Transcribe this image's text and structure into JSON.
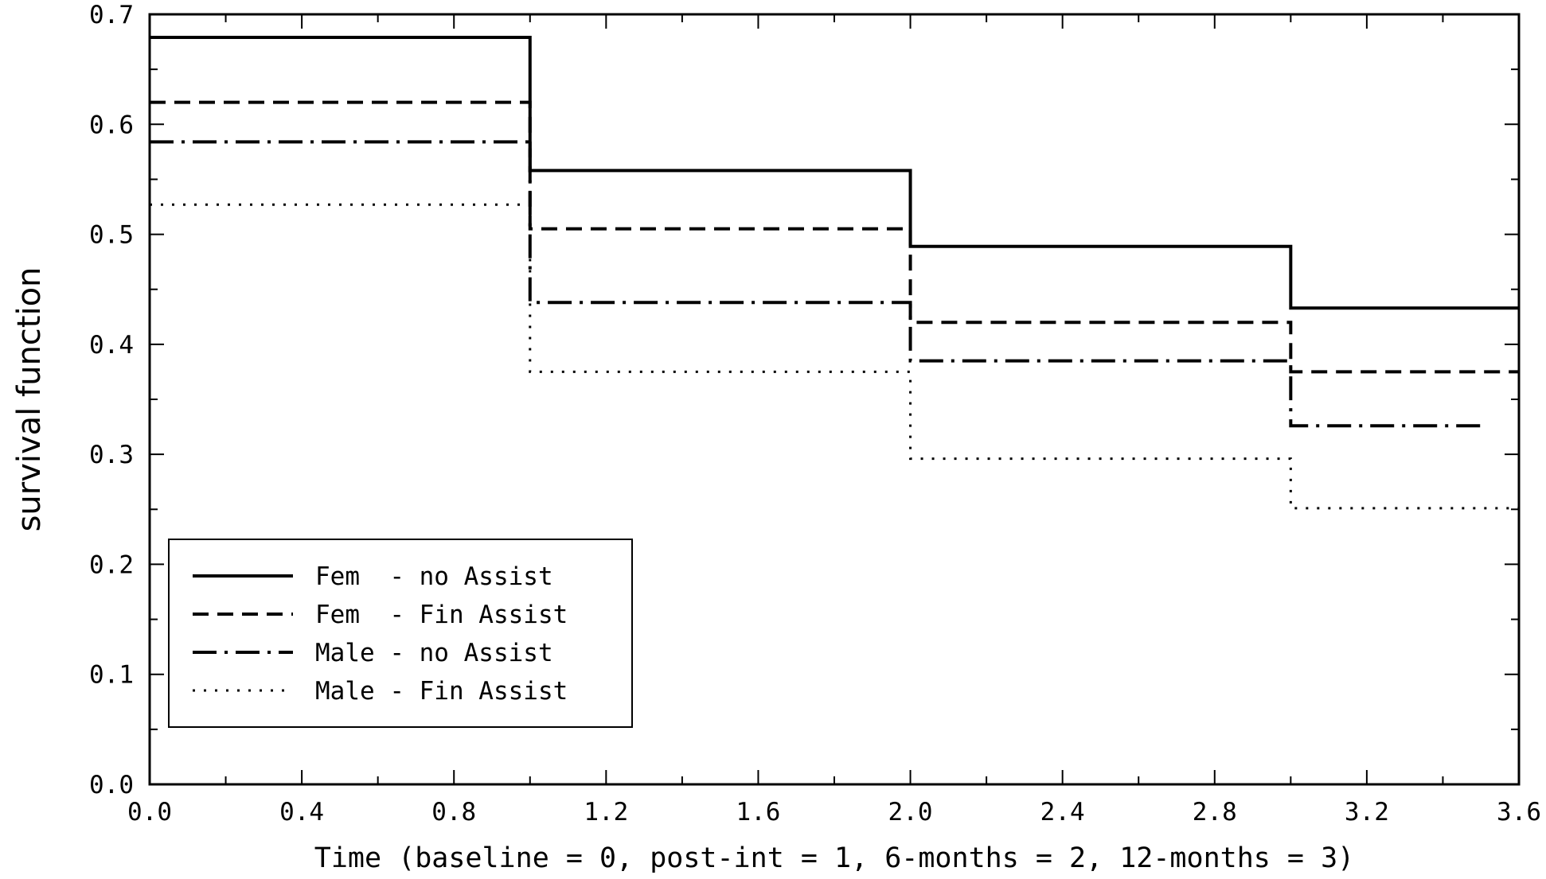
{
  "chart_data": {
    "type": "line",
    "title": "",
    "xlabel": "Time (baseline = 0, post-int = 1, 6-months = 2, 12-months = 3)",
    "ylabel": "survival function",
    "xlim": [
      0,
      3.6
    ],
    "ylim": [
      0,
      0.7
    ],
    "x_ticks": [
      0,
      0.4,
      0.8,
      1.2,
      1.6,
      2.0,
      2.4,
      2.8,
      3.2,
      3.6
    ],
    "x_tick_labels": [
      "0.0",
      "0.4",
      "0.8",
      "1.2",
      "1.6",
      "2.0",
      "2.4",
      "2.8",
      "3.2",
      "3.6"
    ],
    "y_ticks": [
      0,
      0.1,
      0.2,
      0.3,
      0.4,
      0.5,
      0.6,
      0.7
    ],
    "y_tick_labels": [
      "0.0",
      "0.1",
      "0.2",
      "0.3",
      "0.4",
      "0.5",
      "0.6",
      "0.7"
    ],
    "grid": false,
    "step": true,
    "legend_position": "bottom-left",
    "series": [
      {
        "name": "Fem  - no Assist",
        "style": "solid",
        "x": [
          0,
          1,
          2,
          3,
          3.6
        ],
        "values": [
          0.679,
          0.558,
          0.489,
          0.433,
          0.433
        ]
      },
      {
        "name": "Fem  - Fin Assist",
        "style": "dashed",
        "x": [
          0,
          1,
          2,
          3,
          3.6
        ],
        "values": [
          0.62,
          0.505,
          0.42,
          0.375,
          0.375
        ]
      },
      {
        "name": "Male - no Assist",
        "style": "dashdot",
        "x": [
          0,
          1,
          2,
          3,
          3.5
        ],
        "values": [
          0.584,
          0.438,
          0.385,
          0.326,
          0.326
        ]
      },
      {
        "name": "Male - Fin Assist",
        "style": "dotted",
        "x": [
          0,
          1,
          2,
          3,
          3.6
        ],
        "values": [
          0.527,
          0.375,
          0.296,
          0.251,
          0.251
        ]
      }
    ]
  }
}
